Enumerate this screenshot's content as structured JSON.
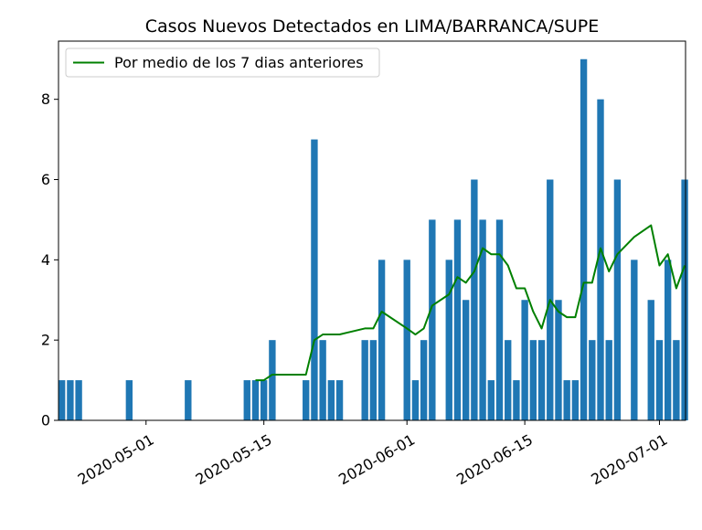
{
  "chart_data": {
    "type": "bar",
    "title": "Casos Nuevos Detectados en LIMA/BARRANCA/SUPE",
    "xlabel": "",
    "ylabel": "",
    "ylim": [
      0,
      9.45
    ],
    "xlim": [
      "2020-04-21",
      "2020-07-04"
    ],
    "yticks": [
      0,
      2,
      4,
      6,
      8
    ],
    "xticks": [
      "2020-05-01",
      "2020-05-15",
      "2020-06-01",
      "2020-06-15",
      "2020-07-01"
    ],
    "grid": false,
    "legend_position": "top-left",
    "colors": {
      "bars": "#1f77b4",
      "line": "#008000"
    },
    "bars": {
      "x": [
        "2020-04-21",
        "2020-04-22",
        "2020-04-23",
        "2020-04-29",
        "2020-05-06",
        "2020-05-13",
        "2020-05-14",
        "2020-05-15",
        "2020-05-16",
        "2020-05-20",
        "2020-05-21",
        "2020-05-22",
        "2020-05-23",
        "2020-05-24",
        "2020-05-27",
        "2020-05-28",
        "2020-05-29",
        "2020-06-01",
        "2020-06-02",
        "2020-06-03",
        "2020-06-04",
        "2020-06-06",
        "2020-06-07",
        "2020-06-08",
        "2020-06-09",
        "2020-06-10",
        "2020-06-11",
        "2020-06-12",
        "2020-06-13",
        "2020-06-14",
        "2020-06-15",
        "2020-06-16",
        "2020-06-17",
        "2020-06-18",
        "2020-06-19",
        "2020-06-20",
        "2020-06-21",
        "2020-06-22",
        "2020-06-23",
        "2020-06-24",
        "2020-06-25",
        "2020-06-26",
        "2020-06-28",
        "2020-06-30",
        "2020-07-01",
        "2020-07-02",
        "2020-07-03",
        "2020-07-04"
      ],
      "values": [
        1,
        1,
        1,
        1,
        1,
        1,
        1,
        1,
        2,
        1,
        7,
        2,
        1,
        1,
        2,
        2,
        4,
        4,
        1,
        2,
        5,
        4,
        5,
        3,
        6,
        5,
        1,
        5,
        2,
        1,
        3,
        2,
        2,
        6,
        3,
        1,
        1,
        9,
        2,
        8,
        2,
        6,
        4,
        3,
        2,
        4,
        2,
        6
      ]
    },
    "series": [
      {
        "name": "Por medio de los 7 dias anteriores",
        "x": [
          "2020-05-14",
          "2020-05-15",
          "2020-05-16",
          "2020-05-20",
          "2020-05-21",
          "2020-05-22",
          "2020-05-23",
          "2020-05-24",
          "2020-05-27",
          "2020-05-28",
          "2020-05-29",
          "2020-06-01",
          "2020-06-02",
          "2020-06-03",
          "2020-06-04",
          "2020-06-06",
          "2020-06-07",
          "2020-06-08",
          "2020-06-09",
          "2020-06-10",
          "2020-06-11",
          "2020-06-12",
          "2020-06-13",
          "2020-06-14",
          "2020-06-15",
          "2020-06-16",
          "2020-06-17",
          "2020-06-18",
          "2020-06-19",
          "2020-06-20",
          "2020-06-21",
          "2020-06-22",
          "2020-06-23",
          "2020-06-24",
          "2020-06-25",
          "2020-06-26",
          "2020-06-28",
          "2020-06-30",
          "2020-07-01",
          "2020-07-02",
          "2020-07-03",
          "2020-07-04"
        ],
        "values": [
          1,
          1,
          1.14,
          1.14,
          2,
          2.14,
          2.14,
          2.14,
          2.29,
          2.29,
          2.71,
          2.29,
          2.14,
          2.29,
          2.86,
          3.14,
          3.57,
          3.43,
          3.71,
          4.29,
          4.14,
          4.14,
          3.86,
          3.29,
          3.29,
          2.71,
          2.29,
          3,
          2.71,
          2.57,
          2.57,
          3.43,
          3.43,
          4.29,
          3.71,
          4.14,
          4.57,
          4.86,
          3.86,
          4.14,
          3.29,
          3.86
        ]
      }
    ]
  }
}
